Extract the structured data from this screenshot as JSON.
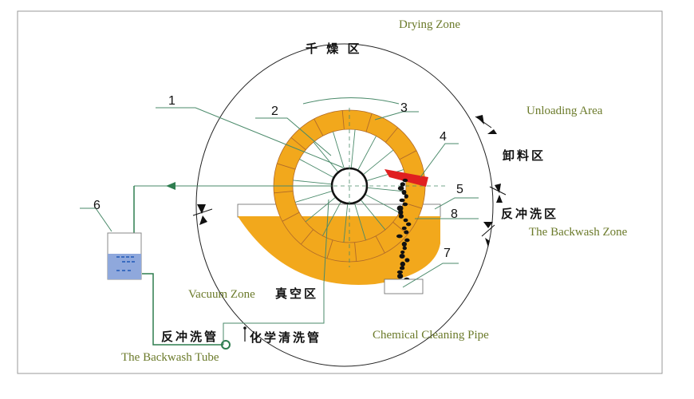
{
  "labels": {
    "drying_zone_en": "Drying Zone",
    "drying_zone_cn": "千 燥 区",
    "unloading_en": "Unloading Area",
    "unloading_cn": "卸料区",
    "backwash_zone_cn": "反冲洗区",
    "backwash_zone_en": "The Backwash Zone",
    "vacuum_zone_en": "Vacuum Zone",
    "vacuum_zone_cn": "真空区",
    "backwash_tube_cn": "反冲洗管",
    "backwash_tube_en": "The Backwash Tube",
    "chemical_pipe_cn": "化学清洗管",
    "chemical_pipe_en": "Chemical Cleaning Pipe"
  },
  "callouts": [
    "1",
    "2",
    "3",
    "4",
    "5",
    "6",
    "7",
    "8"
  ],
  "colors": {
    "slurry": "#f2a81c",
    "scraper": "#e02020",
    "tank_water": "#8fa8dc",
    "leader": "#4a8a6a",
    "english_text": "#6b7a2a"
  }
}
